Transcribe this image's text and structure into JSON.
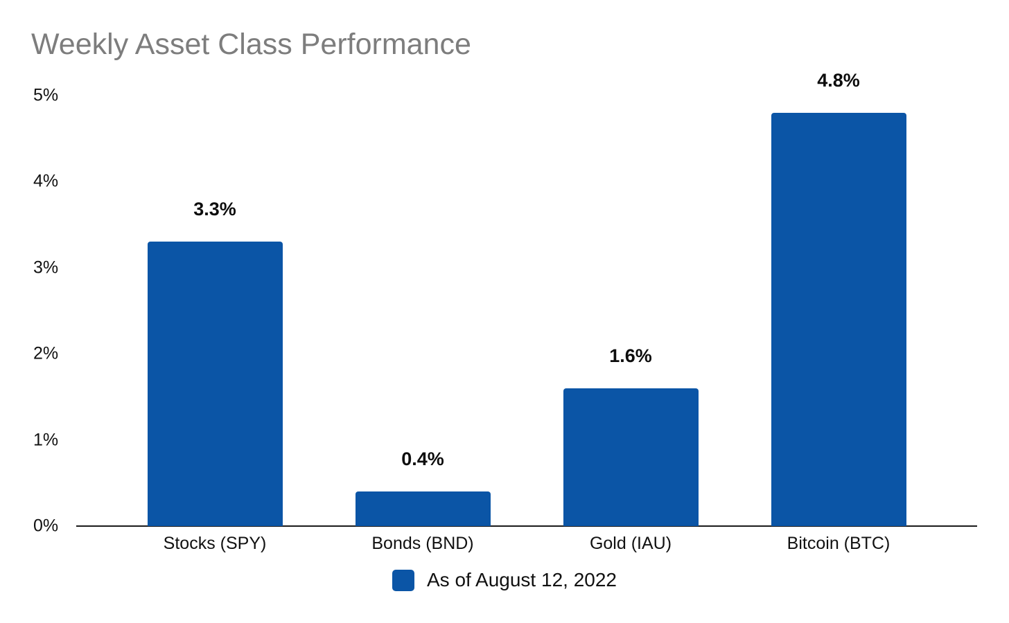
{
  "title": "Weekly Asset Class Performance",
  "colors": {
    "bar": "#0b55a6",
    "title_text": "#7d7d7d",
    "axis_line": "#1a1a1a",
    "label_text": "#111111"
  },
  "chart_data": {
    "type": "bar",
    "title": "Weekly Asset Class Performance",
    "categories": [
      "Stocks (SPY)",
      "Bonds (BND)",
      "Gold (IAU)",
      "Bitcoin (BTC)"
    ],
    "values": [
      3.3,
      0.4,
      1.6,
      4.8
    ],
    "data_labels": [
      "3.3%",
      "0.4%",
      "1.6%",
      "4.8%"
    ],
    "xlabel": "",
    "ylabel": "",
    "ylim": [
      0,
      5
    ],
    "yticks": [
      0,
      1,
      2,
      3,
      4,
      5
    ],
    "ytick_labels": [
      "0%",
      "1%",
      "2%",
      "3%",
      "4%",
      "5%"
    ],
    "grid": false,
    "bar_color": "#0b55a6",
    "legend": {
      "position": "bottom",
      "entries": [
        {
          "label": "As of August 12, 2022",
          "color": "#0b55a6"
        }
      ]
    }
  }
}
